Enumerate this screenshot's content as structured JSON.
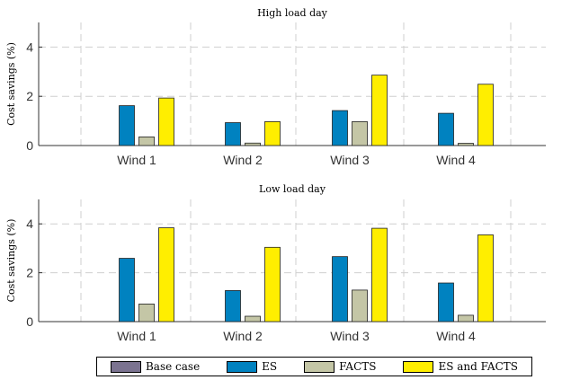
{
  "chart_data": [
    {
      "type": "bar",
      "title": "High load day",
      "ylabel": "Cost savings (%)",
      "xlabel": "",
      "categories": [
        "Wind 1",
        "Wind 2",
        "Wind 3",
        "Wind 4"
      ],
      "ylim": [
        0,
        5
      ],
      "yticks": [
        0,
        2,
        4
      ],
      "grid": true,
      "series": [
        {
          "name": "Base case",
          "color": "#7b7390",
          "values": [
            0,
            0,
            0,
            0
          ]
        },
        {
          "name": "ES",
          "color": "#0082c0",
          "values": [
            1.62,
            0.93,
            1.42,
            1.31
          ]
        },
        {
          "name": "FACTS",
          "color": "#c4c6a6",
          "values": [
            0.35,
            0.1,
            0.97,
            0.09
          ]
        },
        {
          "name": "ES and FACTS",
          "color": "#ffee00",
          "values": [
            1.93,
            0.97,
            2.86,
            2.49
          ]
        }
      ]
    },
    {
      "type": "bar",
      "title": "Low load day",
      "ylabel": "Cost savings (%)",
      "xlabel": "",
      "categories": [
        "Wind 1",
        "Wind 2",
        "Wind 3",
        "Wind 4"
      ],
      "ylim": [
        0,
        5
      ],
      "yticks": [
        0,
        2,
        4
      ],
      "grid": true,
      "series": [
        {
          "name": "Base case",
          "color": "#7b7390",
          "values": [
            0,
            0,
            0,
            0
          ]
        },
        {
          "name": "ES",
          "color": "#0082c0",
          "values": [
            2.59,
            1.27,
            2.66,
            1.58
          ]
        },
        {
          "name": "FACTS",
          "color": "#c4c6a6",
          "values": [
            0.72,
            0.22,
            1.29,
            0.26
          ]
        },
        {
          "name": "ES and FACTS",
          "color": "#ffee00",
          "values": [
            3.84,
            3.04,
            3.82,
            3.55
          ]
        }
      ]
    }
  ],
  "legend": {
    "position": "bottom",
    "entries": [
      "Base case",
      "ES",
      "FACTS",
      "ES and FACTS"
    ]
  }
}
